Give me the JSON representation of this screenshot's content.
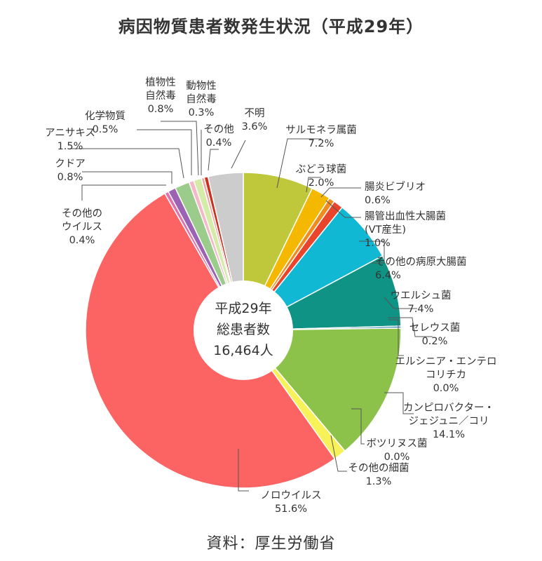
{
  "chart_data": {
    "type": "pie",
    "title": "病因物質患者数発生状況（平成29年）",
    "source": "資料：厚生労働省",
    "center_text": [
      "平成29年",
      "総患者数",
      "16,464人"
    ],
    "unit": "%",
    "slices": [
      {
        "name": "サルモネラ属菌",
        "value": 7.2,
        "label": [
          "サルモネラ属菌",
          "7.2%"
        ],
        "color": "#bfc73a"
      },
      {
        "name": "ぶどう球菌",
        "value": 2.0,
        "label": [
          "ぶどう球菌",
          "2.0%"
        ],
        "color": "#f5b800"
      },
      {
        "name": "腸炎ビブリオ",
        "value": 0.6,
        "label": [
          "腸炎ビブリオ",
          "0.6%"
        ],
        "color": "#f08c1e"
      },
      {
        "name": "腸管出血性大腸菌（VT産生）",
        "value": 1.0,
        "label": [
          "腸管出血性大腸菌",
          "(VT産生)",
          "1.0%"
        ],
        "color": "#e8452c"
      },
      {
        "name": "その他の病原大腸菌",
        "value": 6.4,
        "label": [
          "その他の病原大腸菌",
          "6.4%"
        ],
        "color": "#10b8d4"
      },
      {
        "name": "ウエルシュ菌",
        "value": 7.4,
        "label": [
          "ウエルシュ菌",
          "7.4%"
        ],
        "color": "#0e9384"
      },
      {
        "name": "セレウス菌",
        "value": 0.2,
        "label": [
          "セレウス菌",
          "0.2%"
        ],
        "color": "#1a6fa8"
      },
      {
        "name": "エルシニア・エンテロコリチカ",
        "value": 0.0,
        "label": [
          "エルシニア・エンテロ",
          "コリチカ",
          "0.0%"
        ],
        "color": "#4a7fc0"
      },
      {
        "name": "カンピロバクター・ジェジュニ／コリ",
        "value": 14.1,
        "label": [
          "カンピロバクター・",
          "ジェジュニ／コリ",
          "14.1%"
        ],
        "color": "#8dc24a"
      },
      {
        "name": "ボツリヌス菌",
        "value": 0.0,
        "label": [
          "ボツリヌス菌",
          "0.0%"
        ],
        "color": "#6aa84f"
      },
      {
        "name": "その他の細菌",
        "value": 1.3,
        "label": [
          "その他の細菌",
          "1.3%"
        ],
        "color": "#f7f25a"
      },
      {
        "name": "ノロウイルス",
        "value": 51.6,
        "label": [
          "ノロウイルス",
          "51.6%"
        ],
        "color": "#fc6464"
      },
      {
        "name": "その他のウイルス",
        "value": 0.4,
        "label": [
          "その他の",
          "ウイルス",
          "0.4%"
        ],
        "color": "#e070b0"
      },
      {
        "name": "クドア",
        "value": 0.8,
        "label": [
          "クドア",
          "0.8%"
        ],
        "color": "#9c63b4"
      },
      {
        "name": "アニサキス",
        "value": 1.5,
        "label": [
          "アニサキス",
          "1.5%"
        ],
        "color": "#9ccc8c"
      },
      {
        "name": "化学物質",
        "value": 0.5,
        "label": [
          "化学物質",
          "0.5%"
        ],
        "color": "#f5b8c8"
      },
      {
        "name": "植物性自然毒",
        "value": 0.8,
        "label": [
          "植物性",
          "自然毒",
          "0.8%"
        ],
        "color": "#d4eca8"
      },
      {
        "name": "動物性自然毒",
        "value": 0.3,
        "label": [
          "動物性",
          "自然毒",
          "0.3%"
        ],
        "color": "#f4a4a4"
      },
      {
        "name": "その他",
        "value": 0.4,
        "label": [
          "その他",
          "0.4%"
        ],
        "color": "#c8321e"
      },
      {
        "name": "不明",
        "value": 3.6,
        "label": [
          "不明",
          "3.6%"
        ],
        "color": "#cccccc"
      }
    ]
  }
}
